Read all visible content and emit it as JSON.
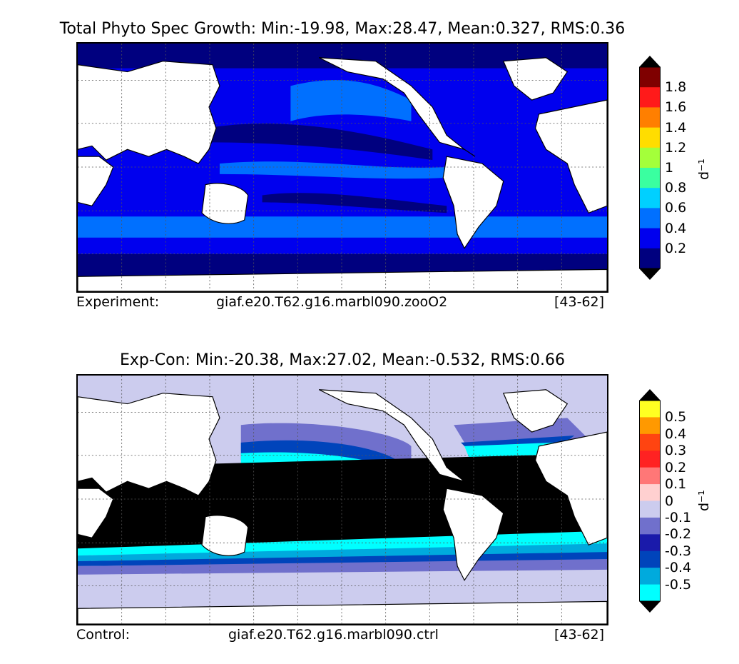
{
  "panels": [
    {
      "title": "Total Phyto Spec Growth: Min:-19.98, Max:28.47, Mean:0.327, RMS:0.36",
      "footer": {
        "left": "Experiment:",
        "center": "giaf.e20.T62.g16.marbl090.zooO2",
        "right": "[43-62]"
      },
      "colorbar": {
        "unit": "d⁻¹",
        "labels": [
          "1.8",
          "1.6",
          "1.4",
          "1.2",
          "1",
          "0.8",
          "0.6",
          "0.4",
          "0.2"
        ],
        "colors_top_to_bottom": [
          "#7f0000",
          "#ff1a1a",
          "#ff7f00",
          "#ffdd00",
          "#a4ff3a",
          "#3affa0",
          "#00d0ff",
          "#0070ff",
          "#0000ee",
          "#00007f"
        ],
        "over_color": "#000000",
        "under_color": "#000000"
      }
    },
    {
      "title": "Exp-Con: Min:-20.38, Max:27.02, Mean:-0.532, RMS:0.66",
      "footer": {
        "left": "Control:",
        "center": "giaf.e20.T62.g16.marbl090.ctrl",
        "right": "[43-62]"
      },
      "colorbar": {
        "unit": "d⁻¹",
        "labels": [
          "0.5",
          "0.4",
          "0.3",
          "0.2",
          "0.1",
          "0",
          "-0.1",
          "-0.2",
          "-0.3",
          "-0.4",
          "-0.5"
        ],
        "colors_top_to_bottom": [
          "#ffff22",
          "#ff9900",
          "#ff4411",
          "#ff2222",
          "#ff7777",
          "#ffd0d0",
          "#ccccee",
          "#7070cc",
          "#1a1aaa",
          "#0044bb",
          "#00aadd",
          "#00ffff"
        ],
        "over_color": "#000000",
        "under_color": "#000000"
      }
    }
  ]
}
